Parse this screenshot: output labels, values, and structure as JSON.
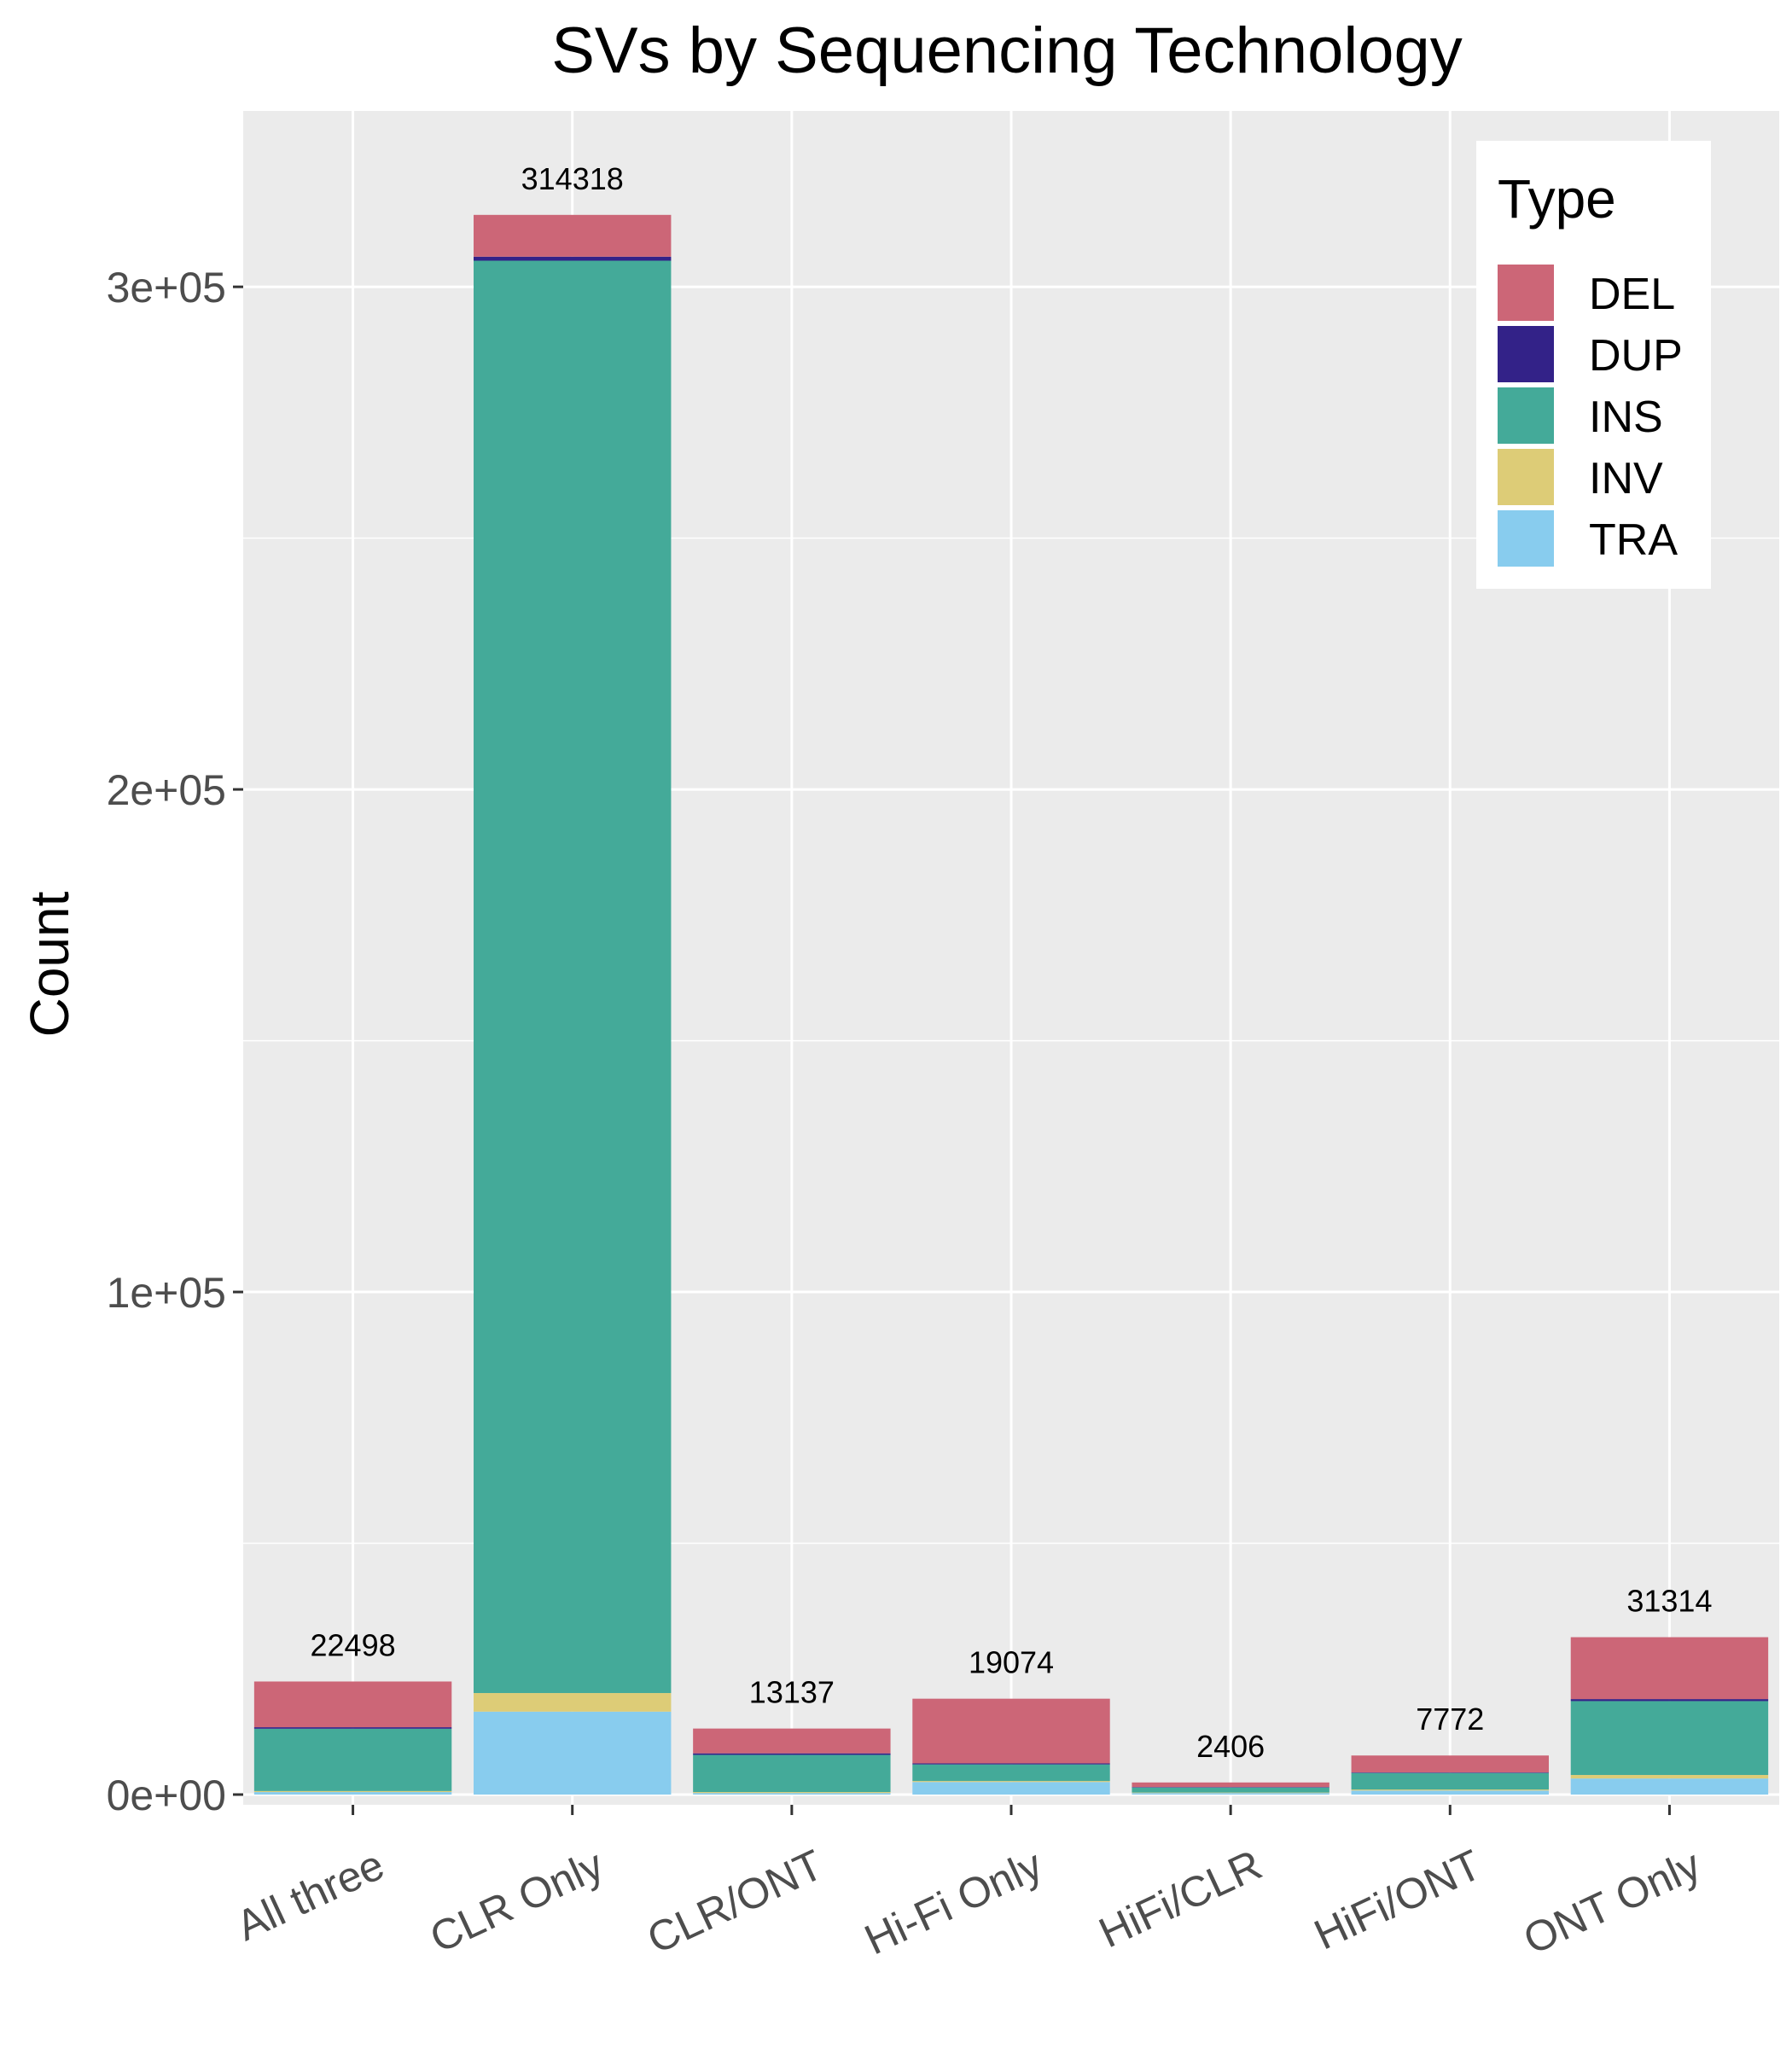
{
  "chart_data": {
    "type": "bar",
    "stacked": true,
    "title": "SVs by Sequencing Technology",
    "xlabel": "",
    "ylabel": "Count",
    "ylim": [
      0,
      335000
    ],
    "yticks": [
      {
        "value": 0,
        "label": "0e+00"
      },
      {
        "value": 100000,
        "label": "1e+05"
      },
      {
        "value": 200000,
        "label": "2e+05"
      },
      {
        "value": 300000,
        "label": "3e+05"
      }
    ],
    "categories": [
      "All three",
      "CLR Only",
      "CLR/ONT",
      "Hi-Fi Only",
      "HiFi/CLR",
      "HiFi/ONT",
      "ONT Only"
    ],
    "totals": [
      22498,
      314318,
      13137,
      19074,
      2406,
      7772,
      31314
    ],
    "total_labels": [
      "22498",
      "314318",
      "13137",
      "19074",
      "2406",
      "7772",
      "31314"
    ],
    "series": [
      {
        "name": "TRA",
        "color": "#88CCEE",
        "values": [
          500,
          16500,
          300,
          2500,
          300,
          800,
          3200
        ]
      },
      {
        "name": "INV",
        "color": "#DDCC77",
        "values": [
          200,
          3700,
          200,
          200,
          100,
          200,
          700
        ]
      },
      {
        "name": "INS",
        "color": "#44AA99",
        "values": [
          12400,
          285000,
          7400,
          3300,
          1000,
          3300,
          14700
        ]
      },
      {
        "name": "DUP",
        "color": "#332288",
        "values": [
          300,
          800,
          300,
          200,
          100,
          100,
          400
        ]
      },
      {
        "name": "DEL",
        "color": "#CC6677",
        "values": [
          9098,
          8318,
          4937,
          12874,
          906,
          3372,
          12314
        ]
      }
    ],
    "legend": {
      "title": "Type",
      "position": "top-right",
      "order": [
        "DEL",
        "DUP",
        "INS",
        "INV",
        "TRA"
      ]
    },
    "grid": true,
    "panel_background": "#EBEBEB",
    "grid_color": "#FFFFFF"
  }
}
